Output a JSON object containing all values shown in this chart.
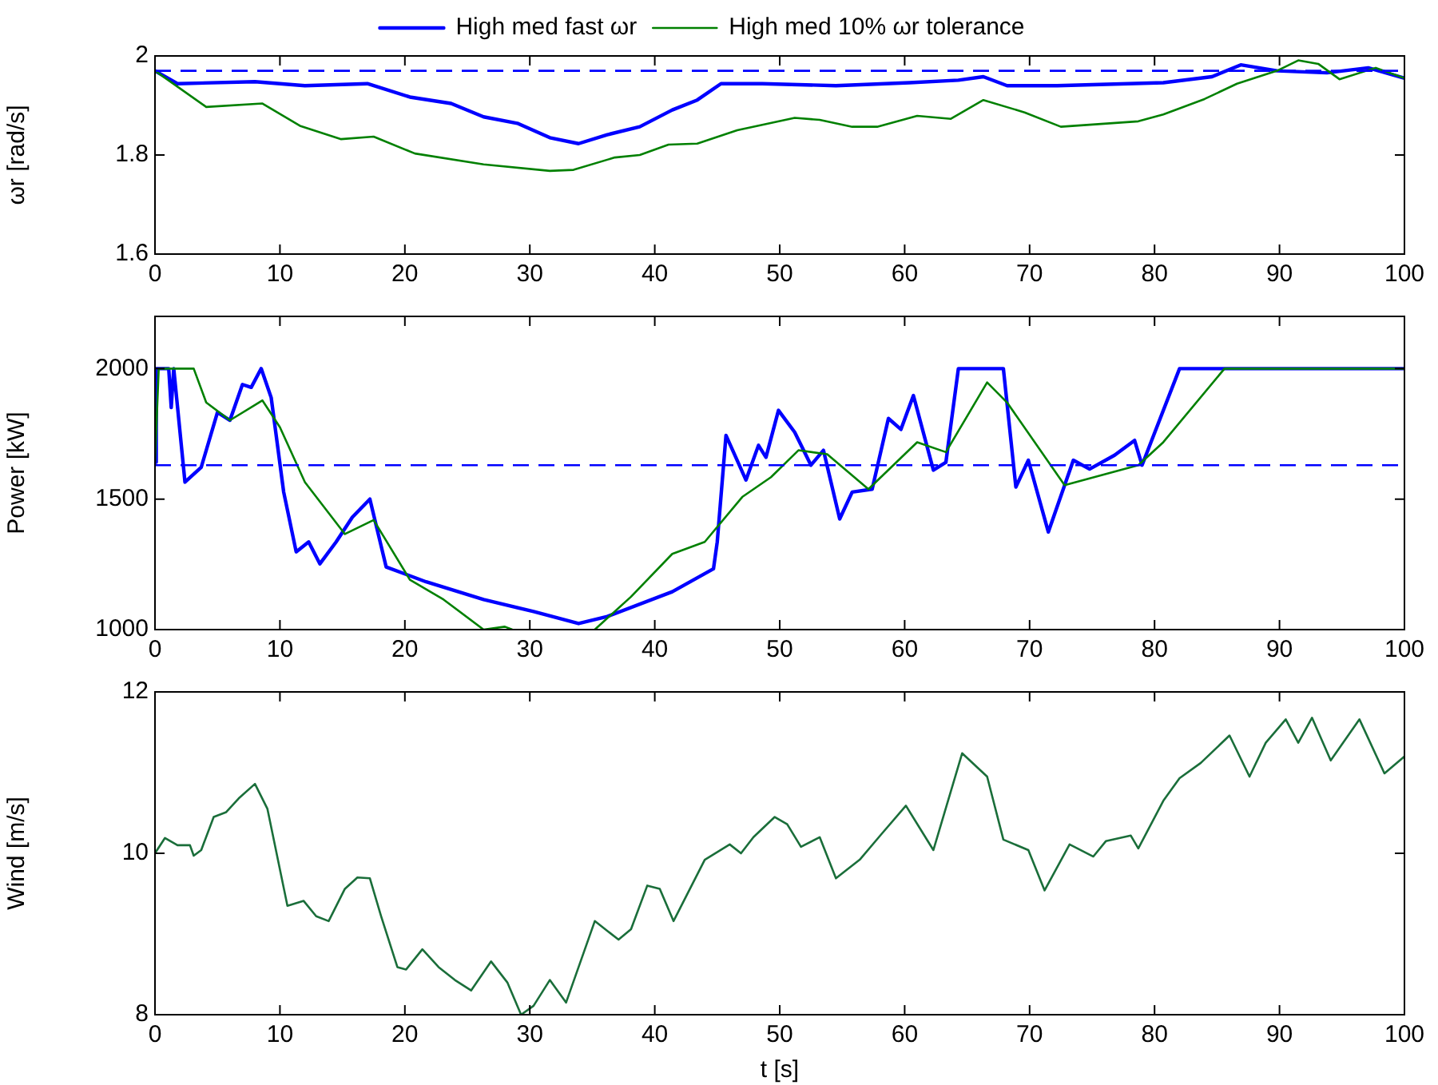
{
  "chart_data": [
    {
      "type": "line",
      "ylabel": "ωr [rad/s]",
      "xlim": [
        0,
        100
      ],
      "xticks": [
        0,
        10,
        20,
        30,
        40,
        50,
        60,
        70,
        80,
        90,
        100
      ],
      "ylim": [
        1.6,
        2
      ],
      "yticks": [
        1.6,
        1.8,
        2
      ],
      "grid": false,
      "legend": "top",
      "line_style": "solid",
      "marker": "none",
      "ref_lines": [
        {
          "axis": "y",
          "value": 1.97,
          "color": "#0000ff",
          "line_style": "dashed"
        }
      ],
      "series": [
        {
          "name": "High med fast ωr",
          "color": "#0000ff",
          "x": [
            0,
            1.8,
            8,
            12,
            17,
            20.4,
            23.7,
            26.3,
            29,
            31.6,
            33.9,
            36.2,
            38.8,
            41.4,
            43.4,
            45.3,
            48.6,
            54.5,
            60.4,
            64.3,
            66.3,
            68.2,
            72.2,
            80.7,
            84.6,
            86.9,
            89.8,
            93.8,
            97.1,
            100
          ],
          "values": [
            1.97,
            1.944,
            1.948,
            1.94,
            1.944,
            1.917,
            1.904,
            1.877,
            1.864,
            1.835,
            1.823,
            1.841,
            1.857,
            1.891,
            1.911,
            1.944,
            1.944,
            1.94,
            1.946,
            1.951,
            1.958,
            1.94,
            1.94,
            1.946,
            1.958,
            1.982,
            1.97,
            1.966,
            1.976,
            1.955
          ]
        },
        {
          "name": "High med 10% ωr tolerance",
          "color": "#008000",
          "x": [
            0,
            4.1,
            8.6,
            11.6,
            14.9,
            17.5,
            20.8,
            26.3,
            31.6,
            33.5,
            36.8,
            38.8,
            41.1,
            43.4,
            46.6,
            51.2,
            53.2,
            55.8,
            57.8,
            61,
            63.7,
            66.3,
            69.6,
            72.5,
            78.7,
            80.7,
            84,
            86.6,
            89.8,
            91.5,
            93.1,
            94.8,
            97.7,
            100
          ],
          "values": [
            1.97,
            1.897,
            1.904,
            1.859,
            1.832,
            1.837,
            1.803,
            1.781,
            1.768,
            1.77,
            1.795,
            1.8,
            1.821,
            1.823,
            1.85,
            1.875,
            1.871,
            1.857,
            1.857,
            1.879,
            1.873,
            1.911,
            1.886,
            1.857,
            1.868,
            1.882,
            1.913,
            1.944,
            1.97,
            1.991,
            1.984,
            1.953,
            1.976,
            1.955
          ]
        }
      ]
    },
    {
      "type": "line",
      "ylabel": "Power [kW]",
      "xlim": [
        0,
        100
      ],
      "xticks": [
        0,
        10,
        20,
        30,
        40,
        50,
        60,
        70,
        80,
        90,
        100
      ],
      "ylim": [
        1000,
        2200
      ],
      "yticks": [
        1000,
        1500,
        2000
      ],
      "grid": false,
      "line_style": "solid",
      "marker": "none",
      "ref_lines": [
        {
          "axis": "y",
          "value": 1630,
          "color": "#0000ff",
          "line_style": "dashed"
        }
      ],
      "series": [
        {
          "color": "#0000ff",
          "x": [
            0,
            0.1,
            1.1,
            1.3,
            1.5,
            2.4,
            3.7,
            5,
            6,
            7,
            7.7,
            8.5,
            9.3,
            10.3,
            11.3,
            12.3,
            13.2,
            14.5,
            15.8,
            17.2,
            18.5,
            21.7,
            26.3,
            30.3,
            33.9,
            36.2,
            41.4,
            44.7,
            45,
            45.7,
            47.3,
            48.3,
            48.9,
            49.9,
            51.2,
            52.5,
            53.5,
            54.8,
            55.8,
            57.4,
            58.7,
            59.7,
            60.7,
            62.3,
            63.3,
            64.3,
            67.9,
            68.9,
            69.9,
            71.5,
            73.5,
            74.8,
            76.8,
            78.4,
            79,
            82,
            100
          ],
          "values": [
            1641,
            2000,
            2000,
            1851,
            2000,
            1565,
            1622,
            1832,
            1802,
            1939,
            1928,
            2000,
            1889,
            1527,
            1298,
            1336,
            1252,
            1336,
            1431,
            1500,
            1240,
            1183,
            1115,
            1069,
            1023,
            1050,
            1145,
            1233,
            1336,
            1744,
            1573,
            1706,
            1660,
            1840,
            1756,
            1630,
            1687,
            1424,
            1527,
            1538,
            1809,
            1767,
            1897,
            1611,
            1641,
            2000,
            2000,
            1546,
            1649,
            1374,
            1649,
            1615,
            1668,
            1725,
            1630,
            2000,
            2000
          ]
        },
        {
          "color": "#008000",
          "x": [
            0,
            0.3,
            3.1,
            4.1,
            6,
            8.6,
            10,
            12,
            15.2,
            17.5,
            20.4,
            23.1,
            26.3,
            28,
            28.6,
            32,
            35.2,
            38.1,
            41.4,
            44,
            47,
            49.3,
            51.5,
            53.8,
            57.1,
            61,
            63.3,
            66.6,
            68.2,
            72.8,
            78.7,
            80.7,
            85.6,
            100
          ],
          "values": [
            1641,
            2000,
            2000,
            1870,
            1802,
            1878,
            1775,
            1565,
            1366,
            1420,
            1191,
            1115,
            1000,
            1011,
            1000,
            null,
            1000,
            1126,
            1290,
            1336,
            1508,
            1584,
            1687,
            1672,
            1538,
            1718,
            1680,
            1947,
            1870,
            1553,
            1630,
            1718,
            2000,
            2000
          ]
        }
      ]
    },
    {
      "type": "line",
      "ylabel": "Wind [m/s]",
      "xlabel": "t [s]",
      "xlim": [
        0,
        100
      ],
      "xticks": [
        0,
        10,
        20,
        30,
        40,
        50,
        60,
        70,
        80,
        90,
        100
      ],
      "ylim": [
        8,
        12
      ],
      "yticks": [
        8,
        10,
        12
      ],
      "grid": false,
      "line_style": "solid",
      "marker": "none",
      "series": [
        {
          "color": "#1a6e3a",
          "x": [
            0,
            0.8,
            1.8,
            2.8,
            3.1,
            3.7,
            4.7,
            5.7,
            6.7,
            8,
            9,
            10.6,
            11.9,
            12.9,
            13.9,
            15.2,
            16.2,
            17.2,
            18.1,
            19.4,
            20.1,
            21.4,
            22.7,
            24,
            25.3,
            26.9,
            28.2,
            29.3,
            30.3,
            31.6,
            32.9,
            35.2,
            37.1,
            38.1,
            39.4,
            40.4,
            41.5,
            44,
            46,
            46.9,
            47.9,
            49.6,
            50.6,
            51.7,
            53.2,
            54.5,
            56.4,
            58.1,
            60.1,
            62.3,
            64.6,
            66.6,
            67.9,
            69.9,
            71.2,
            73.2,
            75.1,
            76.1,
            78.1,
            78.7,
            80.7,
            82,
            83.7,
            86,
            87.6,
            88.9,
            90.5,
            91.5,
            92.6,
            94.1,
            96.4,
            98.4,
            100
          ],
          "values": [
            10.0,
            10.19,
            10.1,
            10.1,
            9.97,
            10.04,
            10.45,
            10.51,
            10.68,
            10.86,
            10.55,
            9.35,
            9.41,
            9.22,
            9.16,
            9.56,
            9.7,
            9.69,
            9.22,
            8.59,
            8.56,
            8.81,
            8.59,
            8.43,
            8.3,
            8.66,
            8.4,
            8.0,
            8.11,
            8.43,
            8.15,
            9.16,
            8.93,
            9.06,
            9.6,
            9.56,
            9.16,
            9.92,
            10.11,
            10.0,
            10.2,
            10.45,
            10.36,
            10.08,
            10.2,
            9.69,
            9.92,
            10.23,
            10.59,
            10.04,
            11.24,
            10.95,
            10.17,
            10.04,
            9.54,
            10.11,
            9.96,
            10.15,
            10.22,
            10.06,
            10.65,
            10.93,
            11.12,
            11.46,
            10.95,
            11.37,
            11.66,
            11.37,
            11.68,
            11.15,
            11.66,
            10.99,
            11.2
          ]
        }
      ]
    }
  ]
}
